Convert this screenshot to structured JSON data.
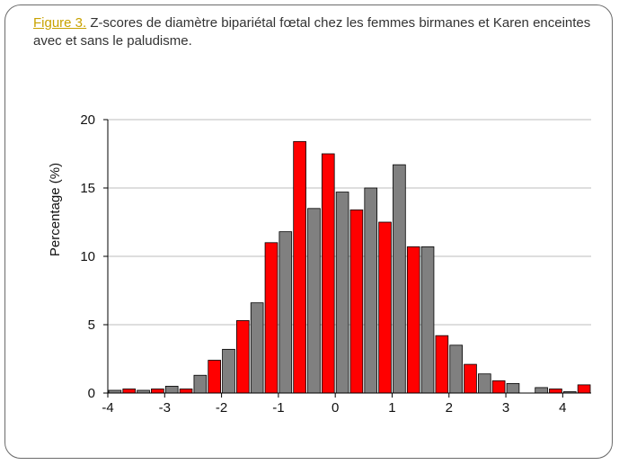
{
  "title": {
    "figure_label": "Figure 3.",
    "text": " Z-scores de diamètre bipariétal fœtal chez les femmes birmanes et Karen enceintes avec et sans le paludisme."
  },
  "chart_data": {
    "type": "bar",
    "ylabel": "Percentage (%)",
    "xlabel": "",
    "xlim": [
      -4,
      4.5
    ],
    "ylim": [
      0,
      20
    ],
    "x_ticks": [
      -4,
      -3,
      -2,
      -1,
      0,
      1,
      2,
      3,
      4
    ],
    "x_tick_labels": [
      "-4",
      "-3",
      "-2",
      "-1",
      "0",
      "1",
      "2",
      "3",
      "4"
    ],
    "y_ticks": [
      0,
      5,
      10,
      15,
      20
    ],
    "y_tick_labels": [
      "0",
      "5",
      "10",
      "15",
      "20"
    ],
    "grid": "horizontal",
    "legend": "none",
    "series": [
      {
        "color": "#808080",
        "bins": [
          -4.0,
          -3.5,
          -3.0,
          -2.5,
          -2.0,
          -1.5,
          -1.0,
          -0.5,
          0.0,
          0.5,
          1.0,
          1.5,
          2.0,
          2.5,
          3.0,
          3.5,
          4.0
        ],
        "values": [
          0.2,
          0.2,
          0.5,
          1.3,
          3.2,
          6.6,
          11.8,
          13.5,
          14.7,
          15.0,
          16.7,
          10.7,
          3.5,
          1.4,
          0.7,
          0.4,
          0.1
        ]
      },
      {
        "color": "#ff0000",
        "bins": [
          -4.0,
          -3.5,
          -3.0,
          -2.5,
          -2.0,
          -1.5,
          -1.0,
          -0.5,
          0.0,
          0.5,
          1.0,
          1.5,
          2.0,
          2.5,
          3.0,
          3.5,
          4.0
        ],
        "values": [
          0.3,
          0.3,
          0.3,
          2.4,
          5.3,
          11.0,
          18.4,
          17.5,
          13.4,
          12.5,
          10.7,
          4.2,
          2.1,
          0.9,
          0.0,
          0.3,
          0.6
        ]
      }
    ]
  }
}
